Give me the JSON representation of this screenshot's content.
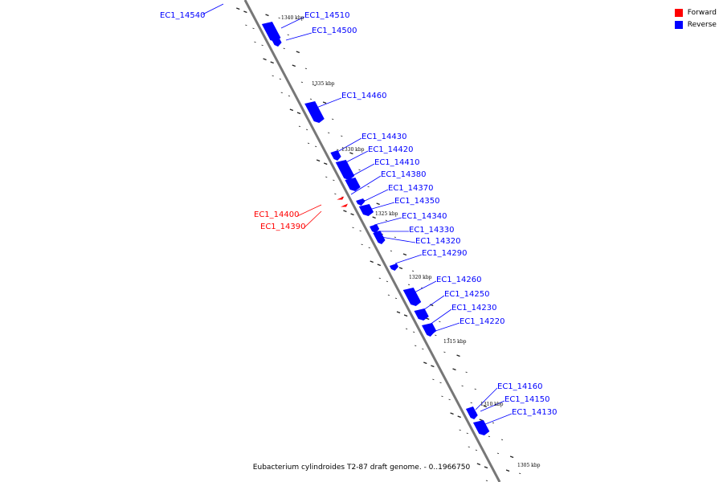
{
  "legend": {
    "forward": {
      "label": "Forward",
      "color": "#ff0000"
    },
    "reverse": {
      "label": "Reverse",
      "color": "#0000ff"
    }
  },
  "caption": "Eubacterium cylindroides T2-87 draft genome. - 0..1966750",
  "ticks": [
    "1340 kbp",
    "1335 kbp",
    "1330 kbp",
    "1325 kbp",
    "1320 kbp",
    "1315 kbp",
    "1310 kbp",
    "1305 kbp"
  ],
  "genes": [
    {
      "id": "EC1_14540",
      "strand": "reverse"
    },
    {
      "id": "EC1_14510",
      "strand": "reverse"
    },
    {
      "id": "EC1_14500",
      "strand": "reverse"
    },
    {
      "id": "EC1_14460",
      "strand": "reverse"
    },
    {
      "id": "EC1_14430",
      "strand": "reverse"
    },
    {
      "id": "EC1_14420",
      "strand": "reverse"
    },
    {
      "id": "EC1_14410",
      "strand": "reverse"
    },
    {
      "id": "EC1_14380",
      "strand": "reverse"
    },
    {
      "id": "EC1_14370",
      "strand": "reverse"
    },
    {
      "id": "EC1_14350",
      "strand": "reverse"
    },
    {
      "id": "EC1_14340",
      "strand": "reverse"
    },
    {
      "id": "EC1_14330",
      "strand": "reverse"
    },
    {
      "id": "EC1_14320",
      "strand": "reverse"
    },
    {
      "id": "EC1_14290",
      "strand": "reverse"
    },
    {
      "id": "EC1_14260",
      "strand": "reverse"
    },
    {
      "id": "EC1_14250",
      "strand": "reverse"
    },
    {
      "id": "EC1_14230",
      "strand": "reverse"
    },
    {
      "id": "EC1_14220",
      "strand": "reverse"
    },
    {
      "id": "EC1_14160",
      "strand": "reverse"
    },
    {
      "id": "EC1_14150",
      "strand": "reverse"
    },
    {
      "id": "EC1_14130",
      "strand": "reverse"
    },
    {
      "id": "EC1_14400",
      "strand": "forward"
    },
    {
      "id": "EC1_14390",
      "strand": "forward"
    }
  ]
}
